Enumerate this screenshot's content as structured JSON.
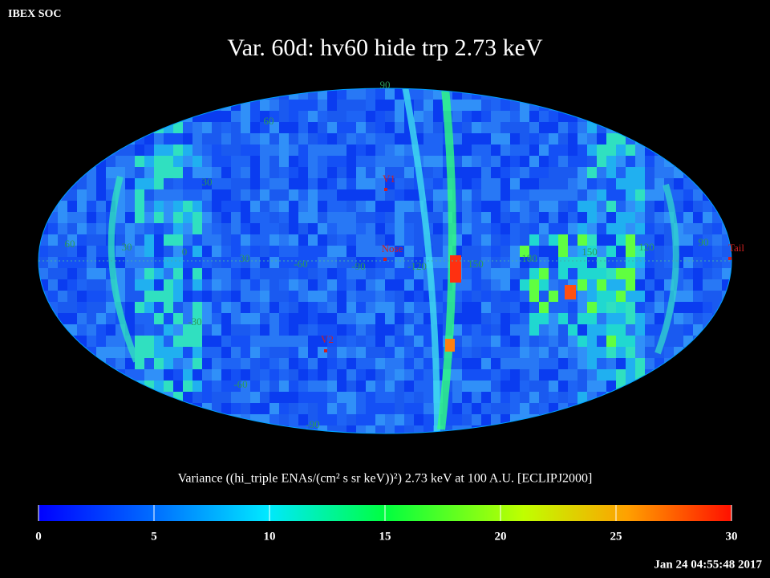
{
  "header": {
    "app": "IBEX SOC",
    "title": "Var. 60d: hv60 hide trp 2.73 keV",
    "timestamp": "Jan 24 04:55:48 2017"
  },
  "map": {
    "longitude_labels": [
      "60",
      "30",
      "0",
      "30",
      "-60",
      "-90",
      "-120",
      "150",
      "180",
      "150",
      "120",
      "90"
    ],
    "latitude_labels": [
      "90",
      "60",
      "30",
      "-30",
      "-60",
      "-90"
    ],
    "markers": [
      "V1",
      "Nose",
      "V2",
      "Tail"
    ]
  },
  "colorbar": {
    "label": "Variance ((hi_triple ENAs/(cm² s sr keV))²) 2.73 keV at 100 A.U. [ECLIPJ2000]",
    "range": [
      0,
      30
    ],
    "ticks": [
      0,
      5,
      10,
      15,
      20,
      25,
      30
    ]
  }
}
